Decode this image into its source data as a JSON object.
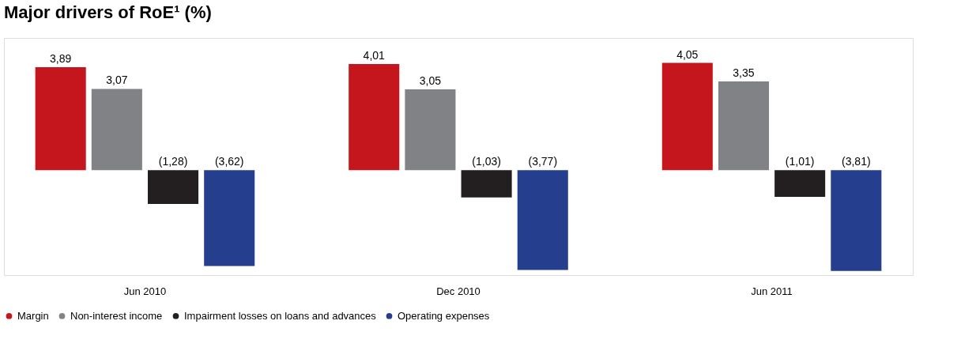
{
  "chart_data": {
    "type": "bar",
    "title": "Major drivers of RoE¹ (%)",
    "categories": [
      "Jun 2010",
      "Dec 2010",
      "Jun 2011"
    ],
    "series": [
      {
        "name": "Margin",
        "color": "#c4161c",
        "values": [
          3.89,
          4.01,
          4.05
        ],
        "value_labels": [
          "3,89",
          "4,01",
          "4,05"
        ]
      },
      {
        "name": "Non-interest income",
        "color": "#808285",
        "values": [
          3.07,
          3.05,
          3.35
        ],
        "value_labels": [
          "3,07",
          "3,05",
          "3,35"
        ]
      },
      {
        "name": "Impairment losses on loans and advances",
        "color": "#231f20",
        "values": [
          -1.28,
          -1.03,
          -1.01
        ],
        "value_labels": [
          "(1,28)",
          "(1,03)",
          "(1,01)"
        ]
      },
      {
        "name": "Operating expenses",
        "color": "#253f8e",
        "values": [
          -3.62,
          -3.77,
          -3.81
        ],
        "value_labels": [
          "(3,62)",
          "(3,77)",
          "(3,81)"
        ]
      }
    ],
    "legend": "bottom left"
  }
}
